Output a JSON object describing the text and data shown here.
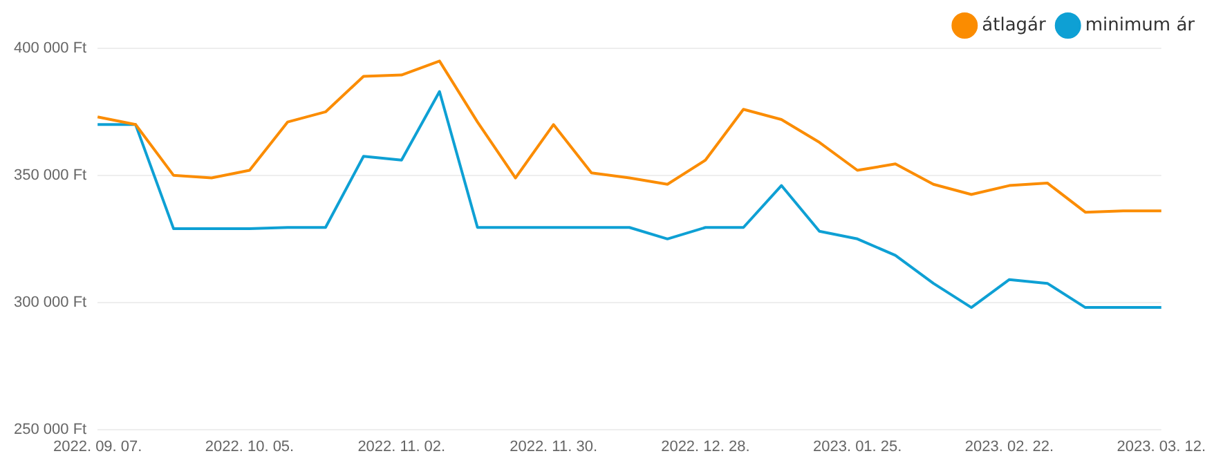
{
  "chart_data": {
    "type": "line",
    "categories": [
      "2022. 09. 07.",
      null,
      null,
      null,
      "2022. 10. 05.",
      null,
      null,
      null,
      "2022. 11. 02.",
      null,
      null,
      null,
      "2022. 11. 30.",
      null,
      null,
      null,
      "2022. 12. 28.",
      null,
      null,
      null,
      "2023. 01. 25.",
      null,
      null,
      null,
      "2023. 02. 22.",
      null,
      null,
      null,
      "2023. 03. 12."
    ],
    "series": [
      {
        "name": "átlagár",
        "color": "#fb8c00",
        "values": [
          373000,
          370000,
          350000,
          349000,
          352000,
          371000,
          375000,
          389000,
          389500,
          395000,
          371000,
          349000,
          370000,
          351000,
          349000,
          346500,
          356000,
          376000,
          372000,
          363000,
          352000,
          354500,
          346500,
          342500,
          346000,
          347000,
          335500,
          336000,
          336000
        ]
      },
      {
        "name": "minimum ár",
        "color": "#0ea0d4",
        "values": [
          370000,
          370000,
          329000,
          329000,
          329000,
          329500,
          329500,
          357500,
          356000,
          383000,
          329500,
          329500,
          329500,
          329500,
          329500,
          325000,
          329500,
          329500,
          346000,
          328000,
          325000,
          318500,
          307500,
          298000,
          309000,
          307500,
          298000,
          298000,
          298000
        ]
      }
    ],
    "ylim": [
      250000,
      400000
    ],
    "yticks": [
      {
        "value": 250000,
        "label": "250 000 Ft"
      },
      {
        "value": 300000,
        "label": "300 000 Ft"
      },
      {
        "value": 350000,
        "label": "350 000 Ft"
      },
      {
        "value": 400000,
        "label": "400 000 Ft"
      }
    ],
    "grid": "y",
    "legend": "top right",
    "marker": "none",
    "line_style": "solid"
  }
}
